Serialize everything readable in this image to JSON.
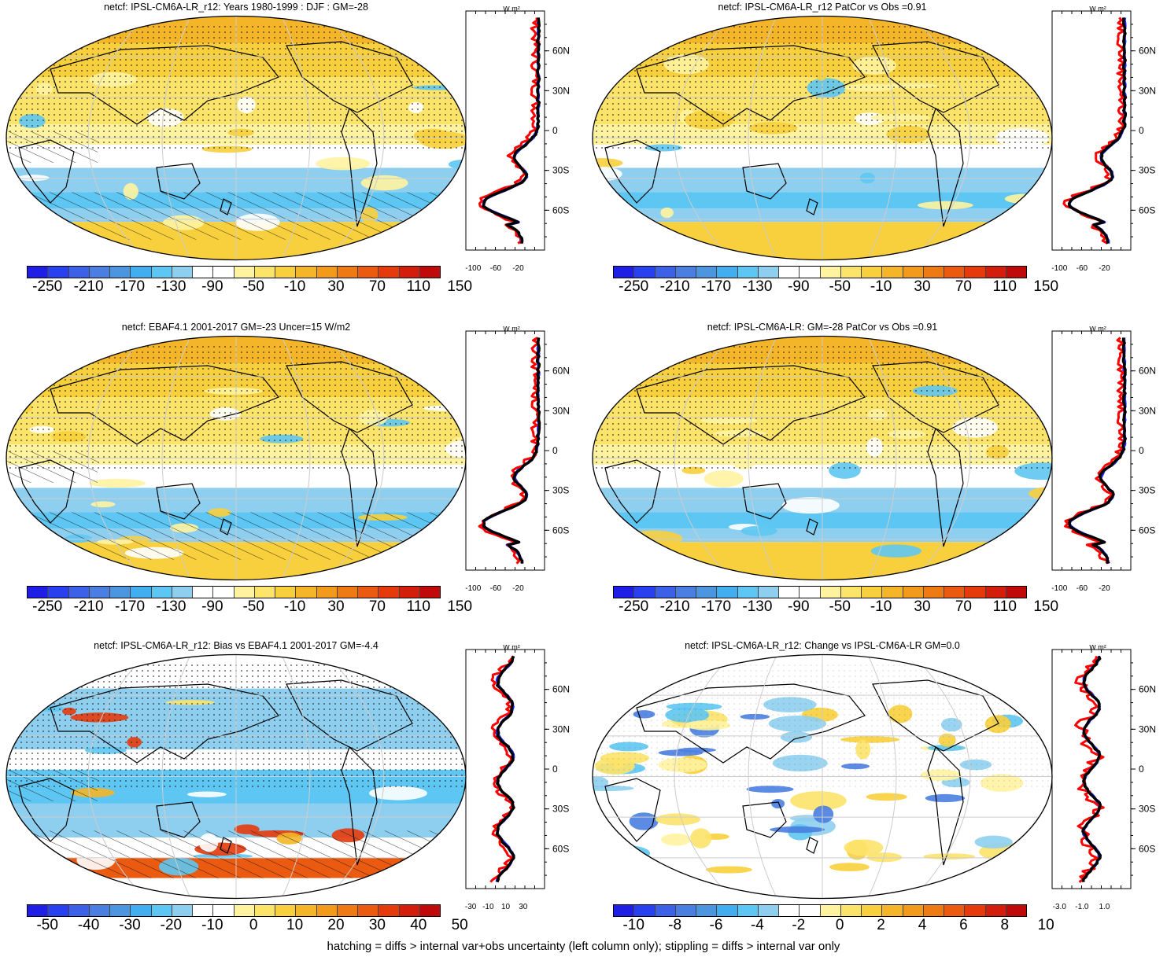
{
  "colors": {
    "scale": [
      "#1e1ee6",
      "#2840ee",
      "#3c60e6",
      "#4a7ee0",
      "#4c96e0",
      "#42aef0",
      "#5ec6f2",
      "#8ecff0",
      "#ffffff",
      "#ffffff",
      "#fff3a0",
      "#fce36a",
      "#f8cf3c",
      "#f4b628",
      "#f29a1c",
      "#ee7a14",
      "#ea5a10",
      "#e43a0c",
      "#d41e0c",
      "#c00a0a"
    ],
    "red_line": "#ff0000",
    "blue_line": "#1a2cff",
    "black_line": "#000000",
    "grid": "#cccccc"
  },
  "panels": [
    {
      "title": "netcf: IPSL-CM6A-LR_r12: Years 1980-1999 : DJF : GM=-28",
      "cbar_labels": [
        "-250",
        "-210",
        "-170",
        "-130",
        "-90",
        "-50",
        "-10",
        "30",
        "70",
        "110",
        "150"
      ],
      "profile_xticks": [
        "-100",
        "-60",
        "-20"
      ],
      "lat_labels": [
        "60N",
        "30N",
        "0",
        "30S",
        "60S"
      ],
      "units": "W m²",
      "palette": "full",
      "hatched": true
    },
    {
      "title": "netcf: IPSL-CM6A-LR_r12 PatCor vs Obs =0.91",
      "cbar_labels": [
        "-250",
        "-210",
        "-170",
        "-130",
        "-90",
        "-50",
        "-10",
        "30",
        "70",
        "110",
        "150"
      ],
      "profile_xticks": [
        "-100",
        "-60",
        "-20"
      ],
      "lat_labels": [
        "60N",
        "30N",
        "0",
        "30S",
        "60S"
      ],
      "units": "W m²",
      "palette": "full",
      "hatched": false
    },
    {
      "title": "netcf: EBAF4.1 2001-2017 GM=-23 Uncer=15 W/m2",
      "cbar_labels": [
        "-250",
        "-210",
        "-170",
        "-130",
        "-90",
        "-50",
        "-10",
        "30",
        "70",
        "110",
        "150"
      ],
      "profile_xticks": [
        "-100",
        "-60",
        "-20"
      ],
      "lat_labels": [
        "60N",
        "30N",
        "0",
        "30S",
        "60S"
      ],
      "units": "W m²",
      "palette": "full",
      "hatched": true
    },
    {
      "title": "netcf: IPSL-CM6A-LR: GM=-28 PatCor vs Obs =0.91",
      "cbar_labels": [
        "-250",
        "-210",
        "-170",
        "-130",
        "-90",
        "-50",
        "-10",
        "30",
        "70",
        "110",
        "150"
      ],
      "profile_xticks": [
        "-100",
        "-60",
        "-20"
      ],
      "lat_labels": [
        "60N",
        "30N",
        "0",
        "30S",
        "60S"
      ],
      "units": "W m²",
      "palette": "full",
      "hatched": false
    },
    {
      "title": "netcf: IPSL-CM6A-LR_r12: Bias vs EBAF4.1 2001-2017 GM=-4.4",
      "cbar_labels": [
        "-50",
        "-40",
        "-30",
        "-20",
        "-10",
        "0",
        "10",
        "20",
        "30",
        "40",
        "50"
      ],
      "profile_xticks": [
        "-30",
        "-10",
        "10",
        "30"
      ],
      "lat_labels": [
        "60N",
        "30N",
        "0",
        "30S",
        "60S"
      ],
      "units": "W m²",
      "palette": "diff",
      "hatched": true
    },
    {
      "title": "netcf: IPSL-CM6A-LR_r12: Change vs IPSL-CM6A-LR GM=0.0",
      "cbar_labels": [
        "-10",
        "-8",
        "-6",
        "-4",
        "-2",
        "0",
        "2",
        "4",
        "6",
        "8",
        "10"
      ],
      "profile_xticks": [
        "-3.0",
        "-1.0",
        "1.0"
      ],
      "lat_labels": [
        "60N",
        "30N",
        "0",
        "30S",
        "60S"
      ],
      "units": "W m²",
      "palette": "change",
      "hatched": false
    }
  ],
  "footnote": "hatching = diffs > internal var+obs uncertainty (left column only); stippling = diffs > internal var only"
}
